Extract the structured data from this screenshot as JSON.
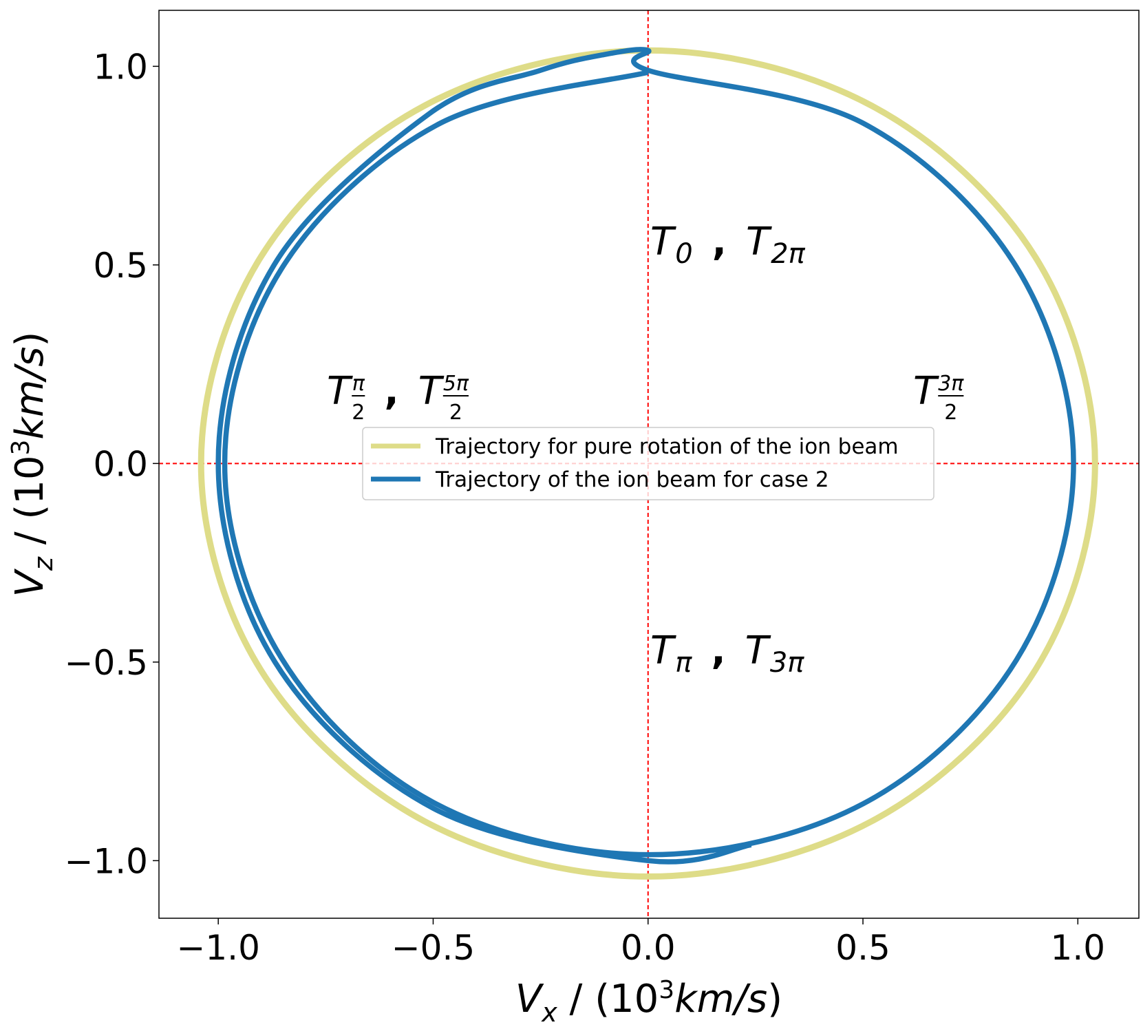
{
  "chart_data": {
    "type": "line",
    "xlabel": {
      "parts": [
        "V",
        "x",
        " / (10",
        "3",
        "km/s",
        ")"
      ]
    },
    "ylabel": {
      "parts": [
        "V",
        "z",
        " / (10",
        "3",
        "km/s",
        ")"
      ]
    },
    "xlim": [
      -1.138,
      1.142
    ],
    "ylim": [
      -1.145,
      1.141
    ],
    "xticks": [
      {
        "value": -1,
        "label": "−1.0"
      },
      {
        "value": -0.5,
        "label": "−0.5"
      },
      {
        "value": 0,
        "label": "0.0"
      },
      0.5,
      {
        "value": 1,
        "label": "1.0"
      }
    ],
    "yticks": [
      {
        "value": -1,
        "label": "−1.0"
      },
      {
        "value": -0.5,
        "label": "−0.5"
      },
      {
        "value": 0,
        "label": "0.0"
      },
      0.5,
      {
        "value": 1,
        "label": "1.0"
      }
    ],
    "grid": false,
    "legend": "center",
    "reference_lines": {
      "x": [
        0
      ],
      "y": [
        0
      ],
      "color": "#ff0000"
    },
    "series": [
      {
        "name": "Trajectory for pure rotation of the ion beam",
        "color": "#dedc88",
        "closed": true,
        "x": [
          0,
          0.52,
          0.901,
          1.04,
          0.901,
          0.52,
          0,
          -0.52,
          -0.901,
          -1.04,
          -0.901,
          -0.52
        ],
        "values": [
          1.04,
          0.901,
          0.52,
          0,
          -0.52,
          -0.901,
          -1.04,
          -0.901,
          -0.52,
          0,
          0.52,
          0.901
        ]
      },
      {
        "name": "Trajectory of the ion beam for case 2",
        "color": "#1f77b4",
        "closed": false,
        "x": [
          0.24,
          0,
          -0.5,
          -0.868,
          -1.0,
          -0.87,
          -0.51,
          -0.25,
          -0.1,
          0,
          0,
          0.5,
          0.857,
          0.99,
          0.857,
          0.5,
          0,
          -0.5,
          -0.853,
          -0.985,
          -0.853,
          -0.49,
          0
        ],
        "values": [
          -0.96,
          -1.0,
          -0.868,
          -0.5,
          0,
          0.5,
          0.88,
          0.99,
          1.03,
          1.04,
          0.99,
          0.857,
          0.495,
          0,
          -0.495,
          -0.857,
          -0.985,
          -0.853,
          -0.49,
          0,
          0.49,
          0.853,
          0.985
        ]
      }
    ],
    "annotations": [
      {
        "terms": [
          {
            "base": "T",
            "sub": "0"
          },
          {
            "base": "T",
            "sub": "2π"
          }
        ],
        "sep": ","
      },
      {
        "terms": [
          {
            "base": "T",
            "num": "π",
            "den": "2"
          },
          {
            "base": "T",
            "num": "5π",
            "den": "2"
          }
        ],
        "sep": ","
      },
      {
        "terms": [
          {
            "base": "T",
            "num": "3π",
            "den": "2"
          }
        ]
      },
      {
        "terms": [
          {
            "base": "T",
            "sub": "π"
          },
          {
            "base": "T",
            "sub": "3π"
          }
        ],
        "sep": ","
      }
    ]
  }
}
